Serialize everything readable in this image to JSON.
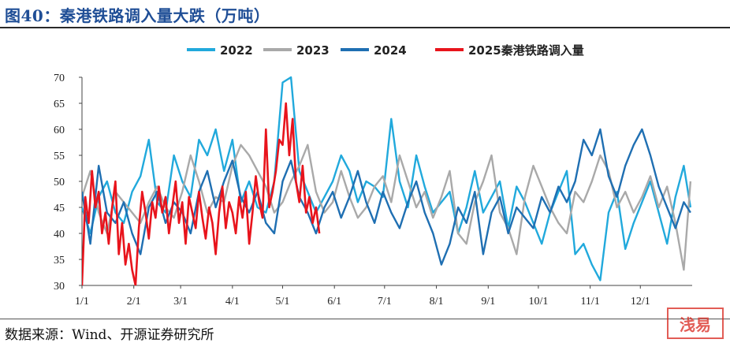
{
  "header": {
    "title": "图40：秦港铁路调入量大跌（万吨）"
  },
  "footer": {
    "source": "数据来源：Wind、开源证券研究所",
    "stamp_text": "浅易"
  },
  "colors": {
    "2022": "#21a9dc",
    "2023": "#a9a9a9",
    "2024": "#1f6fb2",
    "2025": "#e8141c",
    "title": "#1f4e96"
  },
  "chart_data": {
    "type": "line",
    "title": "",
    "xlabel": "",
    "ylabel": "",
    "ylim": [
      30,
      70
    ],
    "yticks": [
      30,
      35,
      40,
      45,
      50,
      55,
      60,
      65,
      70
    ],
    "xlim": [
      1,
      366
    ],
    "xticks": [
      {
        "label": "1/1",
        "day": 1
      },
      {
        "label": "2/1",
        "day": 32
      },
      {
        "label": "3/1",
        "day": 60
      },
      {
        "label": "4/1",
        "day": 91
      },
      {
        "label": "5/1",
        "day": 121
      },
      {
        "label": "6/1",
        "day": 152
      },
      {
        "label": "7/1",
        "day": 182
      },
      {
        "label": "8/1",
        "day": 213
      },
      {
        "label": "9/1",
        "day": 244
      },
      {
        "label": "10/1",
        "day": 274
      },
      {
        "label": "11/1",
        "day": 305
      },
      {
        "label": "12/1",
        "day": 335
      }
    ],
    "legend_position": "top",
    "grid": false,
    "series": [
      {
        "name": "2022",
        "key": "2022",
        "x": [
          1,
          6,
          11,
          16,
          21,
          26,
          31,
          36,
          41,
          46,
          51,
          56,
          61,
          66,
          71,
          76,
          81,
          86,
          91,
          96,
          101,
          106,
          111,
          116,
          121,
          126,
          131,
          136,
          141,
          146,
          151,
          156,
          161,
          166,
          171,
          176,
          181,
          186,
          191,
          196,
          201,
          206,
          211,
          216,
          221,
          226,
          231,
          236,
          241,
          246,
          251,
          256,
          261,
          266,
          271,
          276,
          281,
          286,
          291,
          296,
          301,
          306,
          311,
          316,
          321,
          326,
          331,
          336,
          341,
          346,
          351,
          356,
          361,
          365
        ],
        "values": [
          45,
          40,
          47,
          50,
          44,
          42,
          48,
          51,
          58,
          46,
          44,
          55,
          50,
          47,
          58,
          55,
          60,
          52,
          58,
          46,
          50,
          45,
          44,
          50,
          69,
          70,
          52,
          48,
          44,
          47,
          50,
          55,
          52,
          46,
          50,
          49,
          47,
          62,
          50,
          45,
          55,
          49,
          44,
          46,
          48,
          40,
          45,
          52,
          44,
          47,
          50,
          41,
          49,
          46,
          42,
          38,
          44,
          48,
          52,
          36,
          38,
          34,
          31,
          44,
          48,
          37,
          42,
          46,
          50,
          44,
          38,
          47,
          53,
          45
        ]
      },
      {
        "name": "2023",
        "key": "2023",
        "x": [
          1,
          6,
          11,
          16,
          21,
          26,
          31,
          36,
          41,
          46,
          51,
          56,
          61,
          66,
          71,
          76,
          81,
          86,
          91,
          96,
          101,
          106,
          111,
          116,
          121,
          126,
          131,
          136,
          141,
          146,
          151,
          156,
          161,
          166,
          171,
          176,
          181,
          186,
          191,
          196,
          201,
          206,
          211,
          216,
          221,
          226,
          231,
          236,
          241,
          246,
          251,
          256,
          261,
          266,
          271,
          276,
          281,
          286,
          291,
          296,
          301,
          306,
          311,
          316,
          321,
          326,
          331,
          336,
          341,
          346,
          351,
          356,
          361,
          365
        ],
        "values": [
          47,
          52,
          44,
          40,
          48,
          46,
          44,
          42,
          46,
          49,
          45,
          43,
          48,
          55,
          50,
          44,
          47,
          46,
          53,
          57,
          55,
          52,
          49,
          44,
          46,
          50,
          53,
          57,
          48,
          44,
          46,
          52,
          47,
          43,
          45,
          49,
          51,
          46,
          55,
          50,
          45,
          48,
          43,
          47,
          52,
          40,
          38,
          46,
          50,
          55,
          44,
          41,
          36,
          47,
          53,
          49,
          45,
          42,
          40,
          48,
          46,
          50,
          55,
          52,
          45,
          48,
          44,
          47,
          51,
          45,
          49,
          42,
          33,
          50
        ]
      },
      {
        "name": "2024",
        "key": "2024",
        "x": [
          1,
          6,
          11,
          16,
          21,
          26,
          31,
          36,
          41,
          46,
          51,
          56,
          61,
          66,
          71,
          76,
          81,
          86,
          91,
          96,
          101,
          106,
          111,
          116,
          121,
          126,
          131,
          136,
          141,
          146,
          151,
          156,
          161,
          166,
          171,
          176,
          181,
          186,
          191,
          196,
          201,
          206,
          211,
          216,
          221,
          226,
          231,
          236,
          241,
          246,
          251,
          256,
          261,
          266,
          271,
          276,
          281,
          286,
          291,
          296,
          301,
          306,
          311,
          316,
          321,
          326,
          331,
          336,
          341,
          346,
          351,
          356,
          361,
          365
        ],
        "values": [
          48,
          38,
          53,
          44,
          42,
          46,
          40,
          36,
          45,
          48,
          42,
          46,
          44,
          40,
          48,
          52,
          45,
          50,
          54,
          47,
          44,
          48,
          42,
          40,
          50,
          54,
          47,
          44,
          40,
          45,
          48,
          43,
          47,
          52,
          46,
          42,
          48,
          44,
          41,
          46,
          50,
          44,
          40,
          34,
          38,
          45,
          42,
          48,
          36,
          44,
          47,
          40,
          45,
          43,
          41,
          47,
          44,
          49,
          46,
          50,
          58,
          55,
          60,
          51,
          47,
          53,
          57,
          60,
          55,
          49,
          45,
          41,
          46,
          44
        ]
      },
      {
        "name": "2025秦港铁路调入量",
        "key": "2025",
        "x": [
          1,
          3,
          5,
          7,
          9,
          11,
          13,
          15,
          17,
          19,
          21,
          23,
          25,
          27,
          29,
          31,
          33,
          35,
          37,
          39,
          41,
          43,
          45,
          47,
          49,
          51,
          53,
          55,
          57,
          59,
          61,
          63,
          65,
          67,
          69,
          71,
          73,
          75,
          77,
          79,
          81,
          83,
          85,
          87,
          89,
          91,
          93,
          95,
          97,
          99,
          101,
          103,
          105,
          107,
          109,
          111,
          113,
          115,
          117,
          119,
          121,
          123,
          125,
          127,
          129,
          131,
          133,
          135,
          137,
          139,
          141,
          143
        ],
        "values": [
          30,
          47,
          42,
          52,
          45,
          48,
          40,
          44,
          38,
          45,
          50,
          36,
          42,
          34,
          38,
          33,
          30,
          41,
          48,
          44,
          39,
          46,
          43,
          49,
          44,
          47,
          40,
          45,
          50,
          42,
          46,
          38,
          47,
          44,
          41,
          48,
          43,
          39,
          45,
          42,
          36,
          44,
          49,
          41,
          46,
          44,
          40,
          47,
          43,
          48,
          38,
          44,
          51,
          46,
          43,
          60,
          45,
          48,
          52,
          58,
          57,
          65,
          55,
          62,
          50,
          46,
          53,
          44,
          47,
          42,
          45,
          40
        ]
      }
    ]
  }
}
